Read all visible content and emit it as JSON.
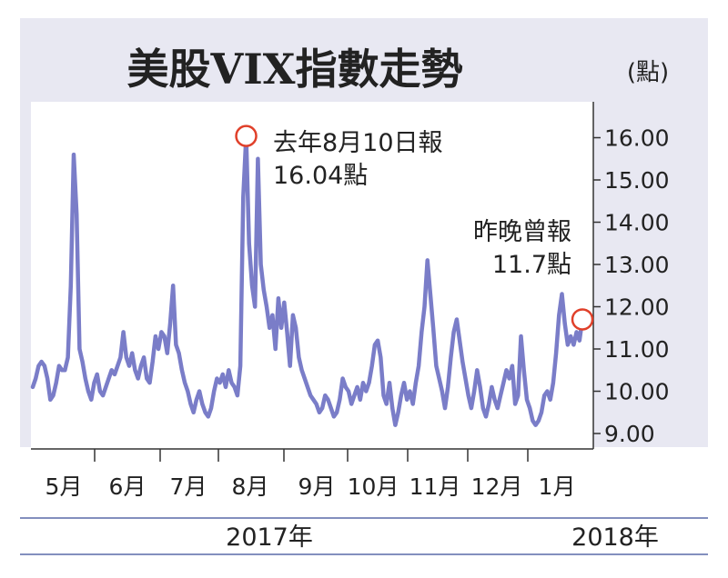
{
  "colors": {
    "outer_bg": "#e8e8f2",
    "plot_bg": "#ffffff",
    "line": "#7a7dc8",
    "marker": "#e0402a",
    "text": "#222222",
    "axis": "#333333",
    "rule": "#5a6aa8"
  },
  "header": {
    "title": "美股VIX指數走勢",
    "unit": "(點)"
  },
  "annotations": {
    "peak": {
      "line1": "去年8月10日報",
      "line2": "16.04點"
    },
    "last": {
      "line1": "昨晚曾報",
      "line2": "11.7點"
    }
  },
  "footer": {
    "year_2017": "2017年",
    "year_2018": "2018年"
  },
  "chart_data": {
    "type": "line",
    "title": "美股VIX指數走勢",
    "unit": "(點)",
    "ylim": [
      9,
      16.6
    ],
    "y_ticks": [
      9.0,
      10.0,
      11.0,
      12.0,
      13.0,
      14.0,
      15.0,
      16.0
    ],
    "y_tick_labels": [
      "9.00",
      "10.00",
      "11.00",
      "12.00",
      "13.00",
      "14.00",
      "15.00",
      "16.00"
    ],
    "x_month_labels": [
      "5月",
      "6月",
      "7月",
      "8月",
      "9月",
      "10月",
      "11月",
      "12月",
      "1月"
    ],
    "x_year_labels": [
      "2017年",
      "2018年"
    ],
    "series": [
      {
        "values": [
          10.1,
          10.3,
          10.6,
          10.7,
          10.6,
          10.3,
          9.8,
          9.9,
          10.2,
          10.6,
          10.5,
          10.5,
          10.8,
          12.5,
          15.6,
          14.2,
          11.0,
          10.7,
          10.3,
          10.0,
          9.8,
          10.2,
          10.4,
          10.0,
          9.9,
          10.1,
          10.3,
          10.5,
          10.4,
          10.6,
          10.8,
          11.4,
          10.8,
          10.6,
          10.9,
          10.5,
          10.3,
          10.6,
          10.8,
          10.3,
          10.2,
          10.7,
          11.3,
          11.0,
          11.4,
          11.3,
          10.9,
          11.6,
          12.5,
          11.1,
          10.9,
          10.5,
          10.2,
          10.0,
          9.7,
          9.5,
          9.8,
          10.0,
          9.7,
          9.5,
          9.4,
          9.6,
          10.0,
          10.3,
          10.2,
          10.4,
          10.1,
          10.5,
          10.2,
          10.1,
          9.9,
          10.6,
          14.6,
          16.04,
          13.5,
          12.5,
          12.0,
          15.5,
          13.0,
          12.4,
          12.0,
          11.5,
          11.8,
          11.0,
          12.2,
          11.5,
          12.1,
          11.4,
          10.6,
          11.8,
          11.5,
          10.8,
          10.5,
          10.3,
          10.1,
          9.9,
          9.8,
          9.7,
          9.5,
          9.6,
          9.9,
          9.8,
          9.6,
          9.4,
          9.5,
          9.8,
          10.3,
          10.1,
          10.0,
          9.7,
          9.9,
          10.1,
          9.8,
          10.2,
          10.0,
          10.2,
          10.6,
          11.1,
          11.2,
          10.8,
          9.9,
          9.7,
          10.2,
          9.6,
          9.2,
          9.5,
          9.9,
          10.2,
          9.8,
          10.0,
          9.7,
          10.2,
          10.6,
          11.4,
          12.0,
          13.1,
          12.3,
          11.5,
          10.6,
          10.3,
          10.0,
          9.6,
          10.1,
          10.8,
          11.4,
          11.7,
          11.2,
          10.7,
          10.3,
          9.9,
          9.6,
          10.0,
          10.5,
          10.1,
          9.6,
          9.4,
          9.7,
          10.1,
          9.8,
          9.6,
          9.9,
          10.2,
          10.5,
          10.3,
          10.6,
          9.7,
          9.9,
          11.3,
          10.5,
          9.8,
          9.6,
          9.3,
          9.2,
          9.3,
          9.5,
          9.9,
          10.0,
          9.8,
          10.2,
          10.9,
          11.8,
          12.3,
          11.6,
          11.1,
          11.3,
          11.1,
          11.4,
          11.2,
          11.7
        ]
      }
    ]
  }
}
